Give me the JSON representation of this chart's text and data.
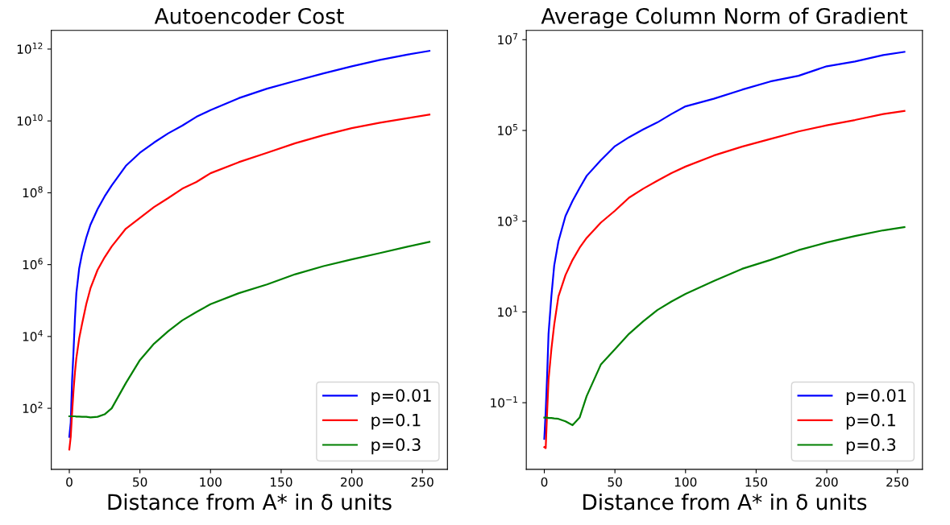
{
  "chart_data": [
    {
      "type": "line",
      "title": "Autoencoder Cost",
      "xlabel": "Distance from A* in δ units",
      "log": "y",
      "legend": "bottom right",
      "grid": false,
      "x": [
        0,
        1,
        2,
        3,
        4,
        5,
        7,
        9,
        12,
        15,
        20,
        25,
        30,
        40,
        50,
        60,
        70,
        80,
        90,
        100,
        120,
        140,
        160,
        180,
        200,
        220,
        240,
        255
      ],
      "xlim": [
        -12.75,
        267.75
      ],
      "xticks": [
        0,
        50,
        100,
        150,
        200,
        250
      ],
      "ylim": [
        2,
        3300000000000.0
      ],
      "yticks": [
        {
          "value": 100,
          "label": "10$^{2}$"
        },
        {
          "value": 10000,
          "label": "10$^{4}$"
        },
        {
          "value": 1000000.0,
          "label": "10$^{6}$"
        },
        {
          "value": 100000000.0,
          "label": "10$^{8}$"
        },
        {
          "value": 10000000000.0,
          "label": "10$^{10}$"
        },
        {
          "value": 1000000000000.0,
          "label": "10$^{12}$"
        }
      ],
      "series": [
        {
          "name": "p=0.01",
          "color": "#0000ff",
          "values": [
            16,
            40,
            630,
            4000,
            32000,
            160000,
            790000,
            2000000.0,
            5600000.0,
            13000000.0,
            35000000.0,
            79000000.0,
            160000000.0,
            560000000.0,
            1300000000.0,
            2500000000.0,
            4500000000.0,
            7400000000.0,
            13000000000.0,
            20000000000.0,
            43000000000.0,
            79000000000.0,
            130000000000.0,
            210000000000.0,
            330000000000.0,
            500000000000.0,
            710000000000.0,
            890000000000.0
          ]
        },
        {
          "name": "p=0.1",
          "color": "#ff0000",
          "values": [
            7.1,
            16,
            79,
            320,
            1000,
            2500,
            8900,
            22000,
            79000,
            220000,
            710000,
            1600000.0,
            3200000.0,
            10000000.0,
            20000000.0,
            40000000.0,
            71000000.0,
            130000000.0,
            200000000.0,
            350000000.0,
            710000000.0,
            1300000000.0,
            2400000000.0,
            4000000000.0,
            6300000000.0,
            8900000000.0,
            12000000000.0,
            15000000000.0
          ]
        },
        {
          "name": "p=0.3",
          "color": "#008000",
          "values": [
            60,
            60,
            60,
            60,
            60,
            59,
            59,
            58,
            58,
            56,
            58,
            68,
            100,
            500,
            2200,
            6300,
            14000,
            28000,
            48000,
            79000,
            160000,
            280000,
            540000,
            910000,
            1400000.0,
            2100000.0,
            3200000.0,
            4300000.0
          ]
        }
      ]
    },
    {
      "type": "line",
      "title": "Average Column Norm of Gradient",
      "xlabel": "Distance from A* in δ units",
      "log": "y",
      "legend": "bottom right",
      "grid": false,
      "x": [
        0,
        1,
        2,
        3,
        5,
        7,
        10,
        15,
        20,
        25,
        30,
        40,
        50,
        60,
        70,
        80,
        90,
        100,
        120,
        140,
        160,
        180,
        200,
        220,
        240,
        255
      ],
      "xlim": [
        -12.75,
        267.75
      ],
      "xticks": [
        0,
        50,
        100,
        150,
        200,
        250
      ],
      "ylim": [
        0.0034,
        16000000.0
      ],
      "yticks": [
        {
          "value": 0.1,
          "label": "10$^{−1}$"
        },
        {
          "value": 10,
          "label": "10$^{1}$"
        },
        {
          "value": 1000,
          "label": "10$^{3}$"
        },
        {
          "value": 100000,
          "label": "10$^{5}$"
        },
        {
          "value": 10000000.0,
          "label": "10$^{7}$"
        }
      ],
      "series": [
        {
          "name": "p=0.01",
          "color": "#0000ff",
          "values": [
            0.016,
            0.065,
            0.4,
            3.3,
            22,
            105,
            360,
            1300,
            2800,
            5400,
            10000,
            22000,
            45000,
            71000,
            105000,
            150000,
            230000,
            340000,
            500000,
            790000,
            1200000.0,
            1600000.0,
            2600000.0,
            3300000.0,
            4600000.0,
            5400000.0
          ]
        },
        {
          "name": "p=0.1",
          "color": "#ff0000",
          "values": [
            0.0105,
            0.01,
            0.063,
            0.32,
            1.5,
            5.2,
            22,
            65,
            140,
            260,
            430,
            930,
            1700,
            3300,
            5200,
            7800,
            11500,
            16000,
            28000,
            44000,
            65000,
            95000,
            130000,
            170000,
            230000,
            270000
          ]
        },
        {
          "name": "p=0.3",
          "color": "#008000",
          "values": [
            0.047,
            0.047,
            0.047,
            0.046,
            0.046,
            0.045,
            0.044,
            0.039,
            0.032,
            0.047,
            0.14,
            0.69,
            1.5,
            3.3,
            6.2,
            11,
            17,
            25,
            48,
            89,
            140,
            230,
            340,
            470,
            630,
            740
          ]
        }
      ]
    }
  ]
}
